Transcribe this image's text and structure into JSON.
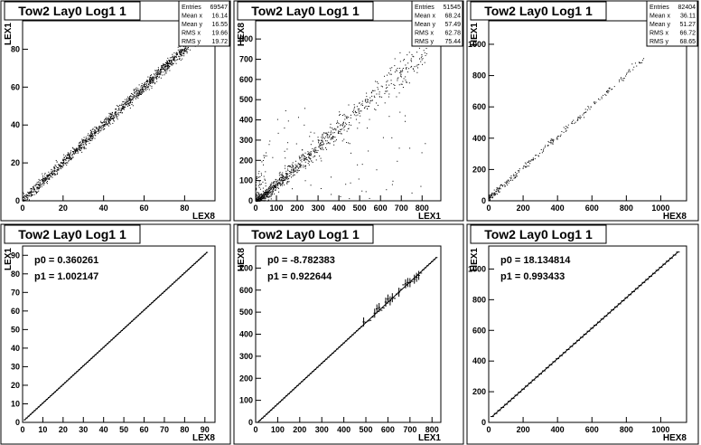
{
  "chart_data": [
    {
      "type": "scatter",
      "title": "Tow2 Lay0 Log1 1",
      "xlabel": "LEX8",
      "ylabel": "LEX1",
      "xlim": [
        0,
        95
      ],
      "ylim": [
        0,
        95
      ],
      "xticks": [
        "0",
        "20",
        "40",
        "60",
        "80"
      ],
      "xtick_vals": [
        0,
        20,
        40,
        60,
        80
      ],
      "yticks": [
        "0",
        "20",
        "40",
        "60",
        "80"
      ],
      "ytick_vals": [
        0,
        20,
        40,
        60,
        80
      ],
      "stats": {
        "rows": [
          {
            "label": "Entries",
            "value": "69547"
          },
          {
            "label": "Mean x",
            "value": "16.14"
          },
          {
            "label": "Mean y",
            "value": "16.55"
          },
          {
            "label": "RMS x",
            "value": "19.66"
          },
          {
            "label": "RMS y",
            "value": "19.72"
          }
        ]
      },
      "fit": null,
      "description_points": "dense diagonal band y = 0.36 + 1.002 x from 0 to 90",
      "relation": {
        "p0": 0.36,
        "p1": 1.002,
        "x_range": [
          0,
          90
        ],
        "spread": 1.5
      }
    },
    {
      "type": "scatter",
      "title": "Tow2 Lay0 Log1 1",
      "xlabel": "LEX1",
      "ylabel": "HEX8",
      "xlim": [
        0,
        890
      ],
      "ylim": [
        0,
        890
      ],
      "xticks": [
        "0",
        "100",
        "200",
        "300",
        "400",
        "500",
        "600",
        "700",
        "800"
      ],
      "xtick_vals": [
        0,
        100,
        200,
        300,
        400,
        500,
        600,
        700,
        800
      ],
      "yticks": [
        "0",
        "100",
        "200",
        "300",
        "400",
        "500",
        "600",
        "700",
        "800"
      ],
      "ytick_vals": [
        0,
        100,
        200,
        300,
        400,
        500,
        600,
        700,
        800
      ],
      "stats": {
        "rows": [
          {
            "label": "Entries",
            "value": "51545"
          },
          {
            "label": "Mean x",
            "value": "68.24"
          },
          {
            "label": "Mean y",
            "value": "57.49"
          },
          {
            "label": "RMS x",
            "value": "62.78"
          },
          {
            "label": "RMS y",
            "value": "75.44"
          }
        ]
      },
      "fit": null,
      "relation": {
        "p0": -8.78,
        "p1": 0.923,
        "x_range": [
          0,
          820
        ],
        "spread": 12
      }
    },
    {
      "type": "scatter",
      "title": "Tow2 Lay0 Log1 1",
      "xlabel": "HEX8",
      "ylabel": "HEX1",
      "xlim": [
        0,
        1150
      ],
      "ylim": [
        0,
        1150
      ],
      "xticks": [
        "0",
        "200",
        "400",
        "600",
        "800",
        "1000"
      ],
      "xtick_vals": [
        0,
        200,
        400,
        600,
        800,
        1000
      ],
      "yticks": [
        "0",
        "200",
        "400",
        "600",
        "800",
        "1000"
      ],
      "ytick_vals": [
        0,
        200,
        400,
        600,
        800,
        1000
      ],
      "stats": {
        "rows": [
          {
            "label": "Entries",
            "value": "82404"
          },
          {
            "label": "Mean x",
            "value": "36.11"
          },
          {
            "label": "Mean y",
            "value": "51.27"
          },
          {
            "label": "RMS x",
            "value": "66.72"
          },
          {
            "label": "RMS y",
            "value": "68.65"
          }
        ]
      },
      "fit": null,
      "relation": {
        "p0": 18.13,
        "p1": 0.993,
        "x_range": [
          0,
          900
        ],
        "spread": 10
      }
    },
    {
      "type": "line",
      "title": "Tow2 Lay0 Log1 1",
      "xlabel": "LEX8",
      "ylabel": "LEX1",
      "xlim": [
        0,
        95
      ],
      "ylim": [
        0,
        95
      ],
      "xticks": [
        "0",
        "10",
        "20",
        "30",
        "40",
        "50",
        "60",
        "70",
        "80",
        "90"
      ],
      "xtick_vals": [
        0,
        10,
        20,
        30,
        40,
        50,
        60,
        70,
        80,
        90
      ],
      "yticks": [
        "0",
        "10",
        "20",
        "30",
        "40",
        "50",
        "60",
        "70",
        "80",
        "90"
      ],
      "ytick_vals": [
        0,
        10,
        20,
        30,
        40,
        50,
        60,
        70,
        80,
        90
      ],
      "stats": null,
      "fit": {
        "p0_label": "p0 = 0.360261",
        "p1_label": "p1 = 1.002147",
        "p0": 0.360261,
        "p1": 1.002147
      },
      "profile": {
        "x_range": [
          1,
          91
        ],
        "step": 1
      }
    },
    {
      "type": "line",
      "title": "Tow2 Lay0 Log1 1",
      "xlabel": "LEX1",
      "ylabel": "HEX8",
      "xlim": [
        0,
        840
      ],
      "ylim": [
        0,
        800
      ],
      "xticks": [
        "0",
        "100",
        "200",
        "300",
        "400",
        "500",
        "600",
        "700",
        "800"
      ],
      "xtick_vals": [
        0,
        100,
        200,
        300,
        400,
        500,
        600,
        700,
        800
      ],
      "yticks": [
        "0",
        "100",
        "200",
        "300",
        "400",
        "500",
        "600",
        "700"
      ],
      "ytick_vals": [
        0,
        100,
        200,
        300,
        400,
        500,
        600,
        700
      ],
      "stats": null,
      "fit": {
        "p0_label": "p0 = -8.782383",
        "p1_label": "p1 = 0.922644",
        "p0": -8.782383,
        "p1": 0.922644
      },
      "profile": {
        "x_range": [
          10,
          820
        ],
        "step": 10
      }
    },
    {
      "type": "line",
      "title": "Tow2 Lay0 Log1 1",
      "xlabel": "HEX8",
      "ylabel": "HEX1",
      "xlim": [
        0,
        1150
      ],
      "ylim": [
        0,
        1150
      ],
      "xticks": [
        "0",
        "200",
        "400",
        "600",
        "800",
        "1000"
      ],
      "xtick_vals": [
        0,
        200,
        400,
        600,
        800,
        1000
      ],
      "yticks": [
        "0",
        "200",
        "400",
        "600",
        "800",
        "1000"
      ],
      "ytick_vals": [
        0,
        200,
        400,
        600,
        800,
        1000
      ],
      "stats": null,
      "fit": {
        "p0_label": "p0 = 18.134814",
        "p1_label": "p1 = 0.993433",
        "p0": 18.134814,
        "p1": 0.993433
      },
      "profile": {
        "x_range": [
          20,
          1100
        ],
        "step": 20
      }
    }
  ]
}
